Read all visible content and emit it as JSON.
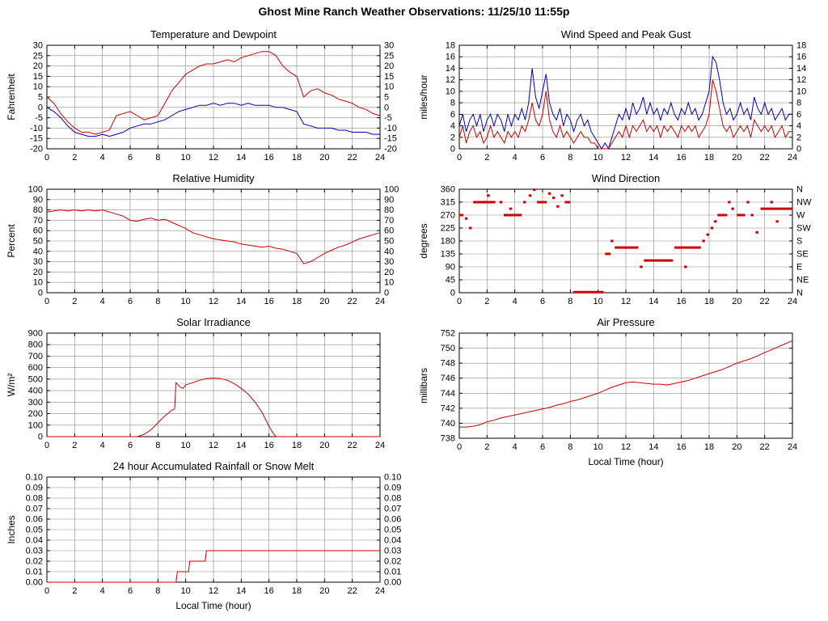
{
  "page_title": "Ghost Mine Ranch Weather Observations: 11/25/10 11:55p",
  "colors": {
    "red": "#cc0000",
    "blue": "#0000b8",
    "grid": "#8c8c8c",
    "axis": "#000000"
  },
  "chart_data": [
    {
      "type": "line",
      "title": "Temperature and Dewpoint",
      "ylabel": "Fahrenheit",
      "xlabel": null,
      "xlim": [
        0,
        24
      ],
      "xtick_step": 2,
      "ylim": [
        -20,
        30
      ],
      "ytick_step": 5,
      "y_decimals": 0,
      "right_labels": "mirror",
      "series": [
        {
          "name": "Dewpoint",
          "color": "blue",
          "x0": 0,
          "dx": 0.5,
          "y": [
            0,
            -2,
            -5,
            -9,
            -12,
            -13,
            -14,
            -14,
            -13,
            -14,
            -13,
            -12,
            -10,
            -9,
            -8,
            -8,
            -7,
            -6,
            -4,
            -2,
            -1,
            0,
            1,
            1,
            2,
            1,
            2,
            2,
            1,
            2,
            1,
            1,
            1,
            0,
            0,
            -1,
            -2,
            -8,
            -9,
            -10,
            -10,
            -10,
            -11,
            -11,
            -12,
            -12,
            -12,
            -13,
            -13
          ]
        },
        {
          "name": "Temperature",
          "color": "red",
          "x0": 0,
          "dx": 0.5,
          "y": [
            5,
            2,
            -3,
            -7,
            -10,
            -12,
            -12,
            -13,
            -12,
            -11,
            -4,
            -3,
            -2,
            -4,
            -6,
            -5,
            -4,
            2,
            8,
            12,
            16,
            18,
            20,
            21,
            21,
            22,
            23,
            22,
            24,
            25,
            26,
            27,
            27,
            25,
            20,
            17,
            15,
            5,
            8,
            9,
            7,
            6,
            4,
            3,
            2,
            0,
            -1,
            -3,
            -4
          ]
        }
      ]
    },
    {
      "type": "line",
      "title": "Wind Speed and Peak Gust",
      "ylabel": "miles/hour",
      "xlabel": null,
      "xlim": [
        0,
        24
      ],
      "xtick_step": 2,
      "ylim": [
        0,
        18
      ],
      "ytick_step": 2,
      "y_decimals": 0,
      "right_labels": "mirror",
      "series": [
        {
          "name": "Peak Gust",
          "color": "blue",
          "x0": 0,
          "dx": 0.25,
          "y": [
            4,
            6,
            3,
            5,
            6,
            4,
            6,
            3,
            5,
            6,
            4,
            6,
            5,
            3,
            6,
            4,
            6,
            5,
            7,
            5,
            8,
            14,
            9,
            7,
            10,
            13,
            8,
            6,
            5,
            7,
            4,
            6,
            5,
            3,
            5,
            6,
            4,
            5,
            3,
            2,
            1,
            0,
            1,
            0,
            2,
            4,
            6,
            5,
            7,
            5,
            8,
            6,
            7,
            9,
            6,
            8,
            6,
            7,
            5,
            7,
            6,
            8,
            6,
            5,
            7,
            6,
            8,
            6,
            7,
            5,
            6,
            8,
            10,
            16,
            15,
            12,
            8,
            6,
            7,
            5,
            6,
            8,
            6,
            7,
            5,
            9,
            7,
            6,
            8,
            6,
            7,
            5,
            6,
            7,
            5,
            6,
            6
          ]
        },
        {
          "name": "Wind Speed",
          "color": "red",
          "x0": 0,
          "dx": 0.25,
          "y": [
            2,
            4,
            1,
            3,
            4,
            2,
            3,
            1,
            2,
            4,
            2,
            3,
            2,
            1,
            3,
            2,
            3,
            2,
            4,
            3,
            5,
            8,
            5,
            4,
            6,
            10,
            5,
            3,
            2,
            4,
            2,
            3,
            2,
            1,
            2,
            3,
            2,
            2,
            1,
            1,
            0,
            0,
            0,
            0,
            1,
            2,
            3,
            2,
            4,
            2,
            4,
            3,
            4,
            5,
            3,
            4,
            3,
            4,
            2,
            4,
            3,
            4,
            3,
            2,
            4,
            3,
            4,
            3,
            4,
            2,
            3,
            4,
            6,
            12,
            10,
            7,
            4,
            3,
            4,
            2,
            3,
            4,
            3,
            4,
            2,
            5,
            4,
            3,
            4,
            3,
            4,
            2,
            3,
            4,
            2,
            3,
            3
          ]
        }
      ]
    },
    {
      "type": "line",
      "title": "Relative Humidity",
      "ylabel": "Percent",
      "xlabel": null,
      "xlim": [
        0,
        24
      ],
      "xtick_step": 2,
      "ylim": [
        0,
        100
      ],
      "ytick_step": 10,
      "y_decimals": 0,
      "right_labels": "mirror",
      "series": [
        {
          "name": "Relative Humidity",
          "color": "red",
          "x0": 0,
          "dx": 0.5,
          "y": [
            78,
            79,
            80,
            79,
            80,
            79,
            80,
            79,
            80,
            78,
            76,
            74,
            70,
            69,
            71,
            72,
            70,
            71,
            68,
            65,
            62,
            58,
            56,
            54,
            52,
            51,
            50,
            49,
            47,
            46,
            45,
            44,
            45,
            43,
            42,
            40,
            38,
            28,
            30,
            34,
            38,
            41,
            44,
            46,
            49,
            52,
            54,
            56,
            58
          ]
        }
      ]
    },
    {
      "type": "scatter-dash",
      "title": "Wind Direction",
      "ylabel": "degrees",
      "xlabel": null,
      "xlim": [
        0,
        24
      ],
      "xtick_step": 2,
      "ylim": [
        0,
        360
      ],
      "ytick_step": 45,
      "y_decimals": 0,
      "right_labels": [
        "N",
        "NE",
        "E",
        "SE",
        "S",
        "SW",
        "W",
        "NW",
        "N"
      ],
      "series": [
        {
          "name": "Wind Direction",
          "color": "red",
          "segments": [
            [
              0.0,
              0.3,
              270
            ],
            [
              0.4,
              0.6,
              258
            ],
            [
              0.7,
              0.9,
              225
            ],
            [
              1.0,
              2.6,
              315
            ],
            [
              2.0,
              2.2,
              338
            ],
            [
              2.9,
              3.1,
              315
            ],
            [
              3.2,
              4.5,
              270
            ],
            [
              3.6,
              3.8,
              292
            ],
            [
              4.6,
              4.8,
              315
            ],
            [
              5.0,
              5.2,
              338
            ],
            [
              5.3,
              5.5,
              358
            ],
            [
              5.6,
              6.3,
              315
            ],
            [
              6.4,
              6.6,
              345
            ],
            [
              6.7,
              6.9,
              330
            ],
            [
              7.0,
              7.2,
              300
            ],
            [
              7.3,
              7.5,
              338
            ],
            [
              7.6,
              8.0,
              315
            ],
            [
              8.2,
              10.4,
              2
            ],
            [
              10.5,
              10.9,
              135
            ],
            [
              10.9,
              11.1,
              180
            ],
            [
              11.2,
              12.9,
              157
            ],
            [
              13.0,
              13.2,
              90
            ],
            [
              13.3,
              15.4,
              112
            ],
            [
              15.5,
              17.4,
              157
            ],
            [
              16.2,
              16.4,
              90
            ],
            [
              17.5,
              17.7,
              180
            ],
            [
              17.8,
              18.0,
              202
            ],
            [
              18.1,
              18.3,
              225
            ],
            [
              18.35,
              18.55,
              248
            ],
            [
              18.6,
              19.3,
              270
            ],
            [
              19.35,
              19.55,
              315
            ],
            [
              19.6,
              19.8,
              292
            ],
            [
              20.0,
              20.6,
              270
            ],
            [
              20.7,
              20.9,
              315
            ],
            [
              21.0,
              21.2,
              270
            ],
            [
              21.35,
              21.55,
              210
            ],
            [
              21.7,
              24.0,
              292
            ],
            [
              22.4,
              22.6,
              315
            ],
            [
              22.8,
              23.0,
              248
            ]
          ]
        }
      ]
    },
    {
      "type": "line",
      "title": "Solar Irradiance",
      "ylabel": "W/m²",
      "xlabel": null,
      "xlim": [
        0,
        24
      ],
      "xtick_step": 2,
      "ylim": [
        0,
        900
      ],
      "ytick_step": 100,
      "y_decimals": 0,
      "right_labels": "none",
      "series": [
        {
          "name": "Solar Irradiance",
          "color": "red",
          "x": [
            0,
            6.5,
            7,
            7.5,
            8,
            8.5,
            9,
            9.2,
            9.3,
            9.6,
            9.8,
            10,
            10.5,
            11,
            11.5,
            12,
            12.5,
            13,
            13.5,
            14,
            14.5,
            15,
            15.5,
            16,
            16.3,
            16.5,
            24
          ],
          "y": [
            0,
            0,
            20,
            60,
            120,
            180,
            230,
            240,
            470,
            430,
            420,
            450,
            470,
            490,
            505,
            510,
            505,
            490,
            460,
            420,
            370,
            300,
            210,
            90,
            30,
            0,
            0
          ]
        }
      ]
    },
    {
      "type": "line",
      "title": "Air Pressure",
      "ylabel": "millibars",
      "xlabel": "Local Time (hour)",
      "xlim": [
        0,
        24
      ],
      "xtick_step": 2,
      "ylim": [
        738,
        752
      ],
      "ytick_step": 2,
      "y_decimals": 0,
      "right_labels": "none",
      "series": [
        {
          "name": "Air Pressure",
          "color": "red",
          "x0": 0,
          "dx": 0.5,
          "y": [
            739.5,
            739.5,
            739.6,
            739.8,
            740.2,
            740.4,
            740.7,
            740.9,
            741.1,
            741.3,
            741.5,
            741.7,
            741.9,
            742.1,
            742.4,
            742.6,
            742.9,
            743.1,
            743.4,
            743.7,
            744.0,
            744.4,
            744.8,
            745.1,
            745.4,
            745.5,
            745.4,
            745.3,
            745.2,
            745.2,
            745.1,
            745.3,
            745.5,
            745.7,
            746.0,
            746.3,
            746.6,
            746.9,
            747.2,
            747.6,
            748.0,
            748.3,
            748.6,
            749.0,
            749.4,
            749.8,
            750.2,
            750.6,
            751.0
          ]
        }
      ]
    },
    {
      "type": "line",
      "title": "24 hour Accumulated Rainfall or Snow Melt",
      "ylabel": "Inches",
      "xlabel": "Local Time (hour)",
      "xlim": [
        0,
        24
      ],
      "xtick_step": 2,
      "ylim": [
        0,
        0.1
      ],
      "ytick_step": 0.01,
      "y_decimals": 2,
      "right_labels": "mirror",
      "series": [
        {
          "name": "Accumulated Rainfall",
          "color": "red",
          "x": [
            0,
            9.3,
            9.4,
            10.2,
            10.3,
            11.4,
            11.5,
            24
          ],
          "y": [
            0,
            0,
            0.01,
            0.01,
            0.02,
            0.02,
            0.03,
            0.03
          ]
        }
      ]
    }
  ]
}
